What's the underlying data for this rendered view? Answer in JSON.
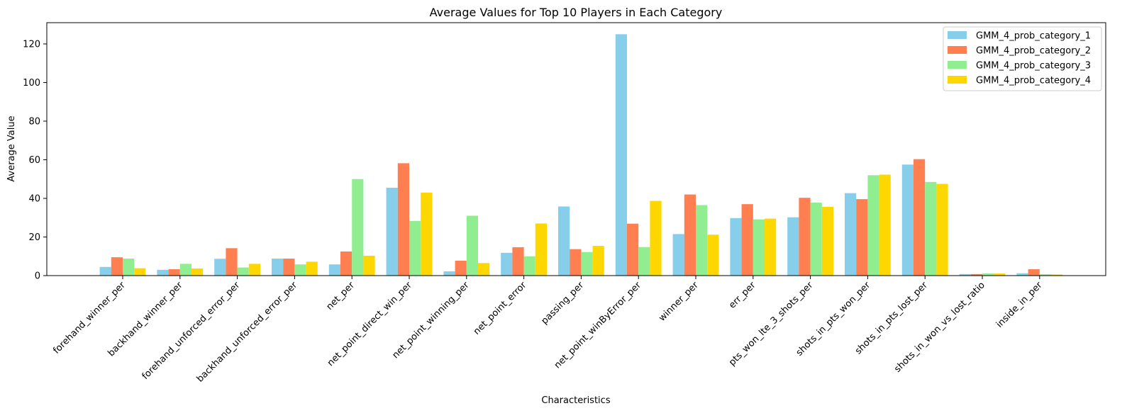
{
  "chart_data": {
    "type": "bar",
    "title": "Average Values for Top 10 Players in Each Category",
    "xlabel": "Characteristics",
    "ylabel": "Average Value",
    "ylim": [
      0,
      131
    ],
    "yticks": [
      0,
      20,
      40,
      60,
      80,
      100,
      120
    ],
    "grid": false,
    "legend_position": "top-right",
    "categories": [
      "forehand_winner_per",
      "backhand_winner_per",
      "forehand_unforced_error_per",
      "backhand_unforced_error_per",
      "net_per",
      "net_point_direct_win_per",
      "net_point_winning_per",
      "net_point_error",
      "passing_per",
      "net_point_winByError_per",
      "winner_per",
      "err_per",
      "pts_won_lte_3_shots_per",
      "shots_in_pts_won_per",
      "shots_in_pts_lost_per",
      "shots_in_won_vs_lost_ratio",
      "inside_in_per"
    ],
    "series": [
      {
        "name": "GMM_4_prob_category_1",
        "color": "#87CEEB",
        "values": [
          4.5,
          3.0,
          8.7,
          8.8,
          5.8,
          45.5,
          2.2,
          11.8,
          35.8,
          125.0,
          21.5,
          29.8,
          30.2,
          42.7,
          57.5,
          0.8,
          1.2
        ]
      },
      {
        "name": "GMM_4_prob_category_2",
        "color": "#FF7F50",
        "values": [
          9.5,
          3.3,
          14.2,
          8.8,
          12.5,
          58.2,
          7.7,
          14.7,
          13.7,
          26.9,
          42.0,
          37.0,
          40.3,
          39.6,
          60.3,
          0.8,
          3.3
        ]
      },
      {
        "name": "GMM_4_prob_category_3",
        "color": "#90EE90",
        "values": [
          8.8,
          6.1,
          4.2,
          5.8,
          50.0,
          28.3,
          31.0,
          10.0,
          12.2,
          14.8,
          36.5,
          29.1,
          37.8,
          52.0,
          48.5,
          1.1,
          0.7
        ]
      },
      {
        "name": "GMM_4_prob_category_4",
        "color": "#FFD700",
        "values": [
          3.8,
          3.7,
          6.1,
          7.2,
          10.3,
          43.0,
          6.5,
          27.0,
          15.4,
          38.7,
          21.2,
          29.5,
          35.6,
          52.3,
          47.5,
          1.1,
          0.6
        ]
      }
    ]
  }
}
